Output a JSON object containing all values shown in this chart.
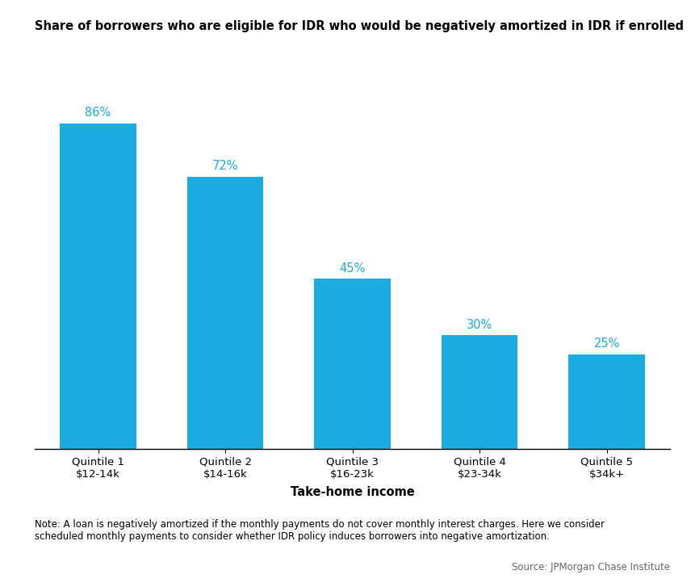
{
  "title": "Share of borrowers who are eligible for IDR who would be negatively amortized in IDR if enrolled",
  "categories": [
    "Quintile 1\n$12-14k",
    "Quintile 2\n$14-16k",
    "Quintile 3\n$16-23k",
    "Quintile 4\n$23-34k",
    "Quintile 5\n$34k+"
  ],
  "values": [
    86,
    72,
    45,
    30,
    25
  ],
  "labels": [
    "86%",
    "72%",
    "45%",
    "30%",
    "25%"
  ],
  "bar_color": "#1AACDF",
  "xlabel": "Take-home income",
  "ylabel": "",
  "ylim": [
    0,
    100
  ],
  "note": "Note: A loan is negatively amortized if the monthly payments do not cover monthly interest charges. Here we consider\nscheduled monthly payments to consider whether IDR policy induces borrowers into negative amortization.",
  "source": "Source: JPMorgan Chase Institute",
  "title_fontsize": 10.5,
  "label_fontsize": 10.5,
  "tick_fontsize": 9.5,
  "note_fontsize": 8.5,
  "background_color": "#FFFFFF"
}
